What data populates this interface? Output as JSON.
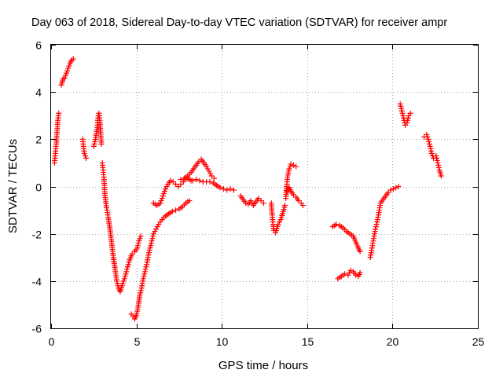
{
  "chart_data": {
    "type": "scatter",
    "title": "Day 063 of 2018, Sidereal Day-to-day VTEC variation (SDTVAR) for receiver ampr",
    "xlabel": "GPS time / hours",
    "ylabel": "SDTVAR / TECUs",
    "xlim": [
      0,
      25
    ],
    "ylim": [
      -6,
      6
    ],
    "xticks": [
      0,
      5,
      10,
      15,
      20,
      25
    ],
    "xtick_labels": [
      "0",
      "5",
      "10",
      "15",
      "20",
      "25"
    ],
    "yticks": [
      -6,
      -4,
      -2,
      0,
      2,
      4,
      6
    ],
    "ytick_labels": [
      "-6",
      "-4",
      "-2",
      "0",
      "2",
      "4",
      "6"
    ],
    "grid": true,
    "marker": "+",
    "color": "#ff0000",
    "series": [
      {
        "name": "SDTVAR",
        "segments": [
          [
            [
              0.2,
              1.0
            ],
            [
              0.25,
              1.4
            ],
            [
              0.3,
              1.8
            ],
            [
              0.35,
              2.3
            ],
            [
              0.4,
              2.8
            ],
            [
              0.45,
              3.1
            ]
          ],
          [
            [
              0.6,
              4.3
            ],
            [
              0.7,
              4.55
            ],
            [
              0.8,
              4.6
            ],
            [
              0.9,
              4.8
            ],
            [
              1.0,
              5.0
            ],
            [
              1.1,
              5.2
            ],
            [
              1.2,
              5.35
            ],
            [
              1.3,
              5.4
            ]
          ],
          [
            [
              1.85,
              2.0
            ],
            [
              1.9,
              1.7
            ],
            [
              1.95,
              1.4
            ],
            [
              2.05,
              1.2
            ]
          ],
          [
            [
              2.5,
              1.7
            ],
            [
              2.6,
              2.0
            ],
            [
              2.7,
              2.5
            ],
            [
              2.75,
              2.9
            ],
            [
              2.8,
              3.1
            ],
            [
              2.85,
              2.8
            ],
            [
              2.9,
              2.3
            ],
            [
              2.95,
              1.8
            ]
          ],
          [
            [
              3.0,
              1.0
            ],
            [
              3.05,
              0.7
            ],
            [
              3.1,
              0.3
            ],
            [
              3.15,
              -0.3
            ],
            [
              3.25,
              -0.9
            ],
            [
              3.35,
              -1.3
            ],
            [
              3.45,
              -1.8
            ],
            [
              3.55,
              -2.4
            ],
            [
              3.65,
              -3.0
            ],
            [
              3.75,
              -3.5
            ],
            [
              3.85,
              -4.0
            ],
            [
              3.95,
              -4.3
            ],
            [
              4.05,
              -4.45
            ],
            [
              4.15,
              -4.2
            ],
            [
              4.3,
              -3.9
            ],
            [
              4.45,
              -3.5
            ],
            [
              4.6,
              -3.1
            ],
            [
              4.75,
              -2.85
            ],
            [
              4.9,
              -2.75
            ],
            [
              5.05,
              -2.6
            ],
            [
              5.15,
              -2.3
            ],
            [
              5.25,
              -2.1
            ]
          ],
          [
            [
              4.7,
              -5.4
            ],
            [
              4.8,
              -5.5
            ],
            [
              4.9,
              -5.6
            ],
            [
              5.0,
              -5.45
            ],
            [
              5.1,
              -5.1
            ],
            [
              5.2,
              -4.6
            ],
            [
              5.3,
              -4.3
            ],
            [
              5.4,
              -3.9
            ],
            [
              5.5,
              -3.6
            ],
            [
              5.6,
              -3.3
            ],
            [
              5.7,
              -2.9
            ],
            [
              5.8,
              -2.6
            ],
            [
              5.9,
              -2.3
            ],
            [
              6.0,
              -2.0
            ],
            [
              6.15,
              -1.8
            ],
            [
              6.3,
              -1.6
            ],
            [
              6.5,
              -1.4
            ],
            [
              6.7,
              -1.25
            ],
            [
              6.9,
              -1.15
            ],
            [
              7.1,
              -1.05
            ],
            [
              7.3,
              -1.0
            ],
            [
              7.5,
              -0.95
            ],
            [
              7.7,
              -0.85
            ],
            [
              7.9,
              -0.7
            ],
            [
              8.1,
              -0.6
            ]
          ],
          [
            [
              6.0,
              -0.7
            ],
            [
              6.2,
              -0.8
            ],
            [
              6.4,
              -0.7
            ],
            [
              6.55,
              -0.4
            ],
            [
              6.7,
              -0.1
            ],
            [
              6.85,
              0.1
            ],
            [
              7.0,
              0.25
            ],
            [
              7.15,
              0.2
            ],
            [
              7.3,
              0.1
            ],
            [
              7.45,
              0.0
            ],
            [
              7.6,
              0.1
            ],
            [
              7.75,
              0.2
            ],
            [
              7.9,
              0.3
            ],
            [
              8.0,
              0.35
            ],
            [
              8.1,
              0.3
            ],
            [
              8.2,
              0.25
            ],
            [
              8.3,
              0.25
            ]
          ],
          [
            [
              7.6,
              0.3
            ],
            [
              7.8,
              0.35
            ],
            [
              8.0,
              0.45
            ],
            [
              8.2,
              0.6
            ],
            [
              8.35,
              0.75
            ],
            [
              8.5,
              0.9
            ],
            [
              8.65,
              1.05
            ],
            [
              8.8,
              1.15
            ],
            [
              8.95,
              1.0
            ],
            [
              9.1,
              0.85
            ],
            [
              9.25,
              0.65
            ],
            [
              9.4,
              0.45
            ],
            [
              9.55,
              0.35
            ]
          ],
          [
            [
              8.5,
              0.3
            ],
            [
              8.7,
              0.25
            ],
            [
              8.9,
              0.2
            ],
            [
              9.1,
              0.2
            ],
            [
              9.3,
              0.2
            ],
            [
              9.5,
              0.15
            ],
            [
              9.7,
              0.05
            ],
            [
              9.9,
              -0.05
            ],
            [
              10.1,
              -0.1
            ],
            [
              10.3,
              -0.15
            ],
            [
              10.5,
              -0.1
            ],
            [
              10.7,
              -0.15
            ]
          ],
          [
            [
              11.1,
              -0.4
            ],
            [
              11.25,
              -0.55
            ],
            [
              11.4,
              -0.7
            ],
            [
              11.55,
              -0.75
            ],
            [
              11.7,
              -0.6
            ],
            [
              11.85,
              -0.8
            ],
            [
              12.0,
              -0.65
            ],
            [
              12.15,
              -0.5
            ],
            [
              12.3,
              -0.6
            ],
            [
              12.45,
              -0.7
            ]
          ],
          [
            [
              12.9,
              -0.7
            ],
            [
              12.95,
              -1.2
            ],
            [
              13.0,
              -1.6
            ],
            [
              13.05,
              -1.85
            ],
            [
              13.15,
              -1.95
            ],
            [
              13.3,
              -1.6
            ],
            [
              13.45,
              -1.4
            ],
            [
              13.6,
              -1.05
            ],
            [
              13.7,
              -0.8
            ]
          ],
          [
            [
              13.75,
              -0.5
            ],
            [
              13.8,
              0.0
            ],
            [
              13.85,
              0.4
            ],
            [
              13.95,
              0.75
            ],
            [
              14.05,
              0.95
            ],
            [
              14.2,
              0.9
            ],
            [
              14.35,
              0.85
            ]
          ],
          [
            [
              13.85,
              -0.2
            ],
            [
              13.95,
              -0.05
            ],
            [
              14.05,
              -0.2
            ],
            [
              14.2,
              -0.35
            ],
            [
              14.35,
              -0.45
            ],
            [
              14.5,
              -0.6
            ],
            [
              14.65,
              -0.7
            ],
            [
              14.75,
              -0.8
            ]
          ],
          [
            [
              16.5,
              -1.7
            ],
            [
              16.7,
              -1.6
            ],
            [
              16.9,
              -1.65
            ],
            [
              17.1,
              -1.75
            ],
            [
              17.3,
              -1.9
            ],
            [
              17.5,
              -2.0
            ],
            [
              17.7,
              -2.1
            ],
            [
              17.85,
              -2.35
            ],
            [
              18.0,
              -2.6
            ],
            [
              18.1,
              -2.75
            ]
          ],
          [
            [
              16.8,
              -3.9
            ],
            [
              17.0,
              -3.8
            ],
            [
              17.2,
              -3.7
            ],
            [
              17.4,
              -3.75
            ],
            [
              17.55,
              -3.55
            ],
            [
              17.7,
              -3.6
            ],
            [
              17.85,
              -3.75
            ],
            [
              18.0,
              -3.8
            ],
            [
              18.1,
              -3.65
            ]
          ],
          [
            [
              18.7,
              -3.0
            ],
            [
              18.8,
              -2.6
            ],
            [
              18.9,
              -2.2
            ],
            [
              19.0,
              -1.8
            ],
            [
              19.1,
              -1.5
            ],
            [
              19.2,
              -1.1
            ],
            [
              19.3,
              -0.7
            ],
            [
              19.45,
              -0.55
            ],
            [
              19.6,
              -0.4
            ],
            [
              19.75,
              -0.25
            ],
            [
              19.9,
              -0.15
            ],
            [
              20.05,
              -0.1
            ],
            [
              20.2,
              -0.05
            ],
            [
              20.35,
              0.0
            ]
          ],
          [
            [
              20.45,
              3.5
            ],
            [
              20.55,
              3.2
            ],
            [
              20.65,
              2.9
            ],
            [
              20.75,
              2.6
            ],
            [
              20.85,
              2.7
            ],
            [
              20.95,
              3.0
            ],
            [
              21.05,
              3.1
            ]
          ],
          [
            [
              21.85,
              2.1
            ],
            [
              22.0,
              2.2
            ],
            [
              22.1,
              2.0
            ],
            [
              22.2,
              1.7
            ],
            [
              22.3,
              1.4
            ],
            [
              22.4,
              1.2
            ],
            [
              22.55,
              1.3
            ],
            [
              22.65,
              1.0
            ],
            [
              22.75,
              0.7
            ],
            [
              22.85,
              0.45
            ]
          ]
        ]
      }
    ]
  }
}
